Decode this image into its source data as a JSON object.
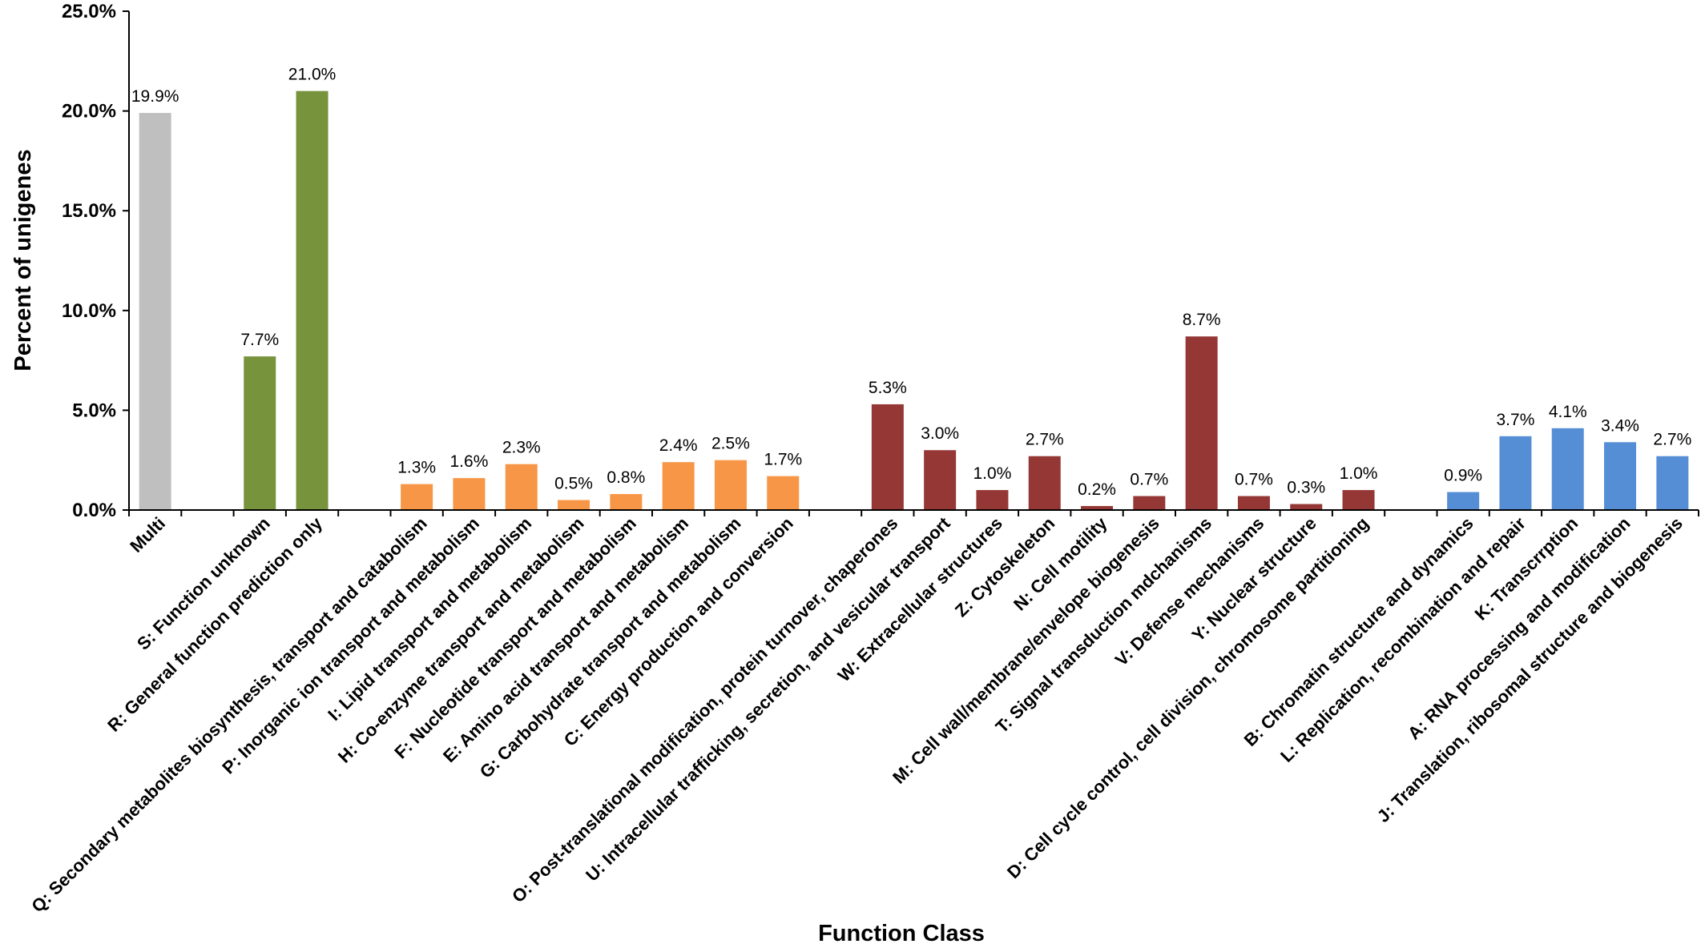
{
  "chart_data": {
    "type": "bar",
    "xlabel": "Function Class",
    "ylabel": "Percent of unigenes",
    "ylim": [
      0,
      25
    ],
    "yticks": [
      "0.0%",
      "5.0%",
      "10.0%",
      "15.0%",
      "20.0%",
      "25.0%"
    ],
    "ytick_values": [
      0,
      5,
      10,
      15,
      20,
      25
    ],
    "grid": false,
    "legend": "none",
    "colors": {
      "multi": "#bfbfbf",
      "green": "#77933c",
      "orange": "#f79646",
      "darkred": "#953735",
      "blue": "#558ed5"
    },
    "bars": [
      {
        "category": "Multi",
        "value": 19.9,
        "label": "19.9%",
        "group": "multi",
        "slot": 0
      },
      {
        "category": "S: Function unknown",
        "value": 7.7,
        "label": "7.7%",
        "group": "green",
        "slot": 2
      },
      {
        "category": "R: General function prediction only",
        "value": 21.0,
        "label": "21.0%",
        "group": "green",
        "slot": 3
      },
      {
        "category": "Q: Secondary metabolites biosynthesis, transport and catabolism",
        "value": 1.3,
        "label": "1.3%",
        "group": "orange",
        "slot": 5
      },
      {
        "category": "P: Inorganic ion transport and metabolism",
        "value": 1.6,
        "label": "1.6%",
        "group": "orange",
        "slot": 6
      },
      {
        "category": "I: Lipid transport and metabolism",
        "value": 2.3,
        "label": "2.3%",
        "group": "orange",
        "slot": 7
      },
      {
        "category": "H: Co-enzyme transport and metabolism",
        "value": 0.5,
        "label": "0.5%",
        "group": "orange",
        "slot": 8
      },
      {
        "category": "F: Nucleotide transport and metabolism",
        "value": 0.8,
        "label": "0.8%",
        "group": "orange",
        "slot": 9
      },
      {
        "category": "E: Amino acid transport and metabolism",
        "value": 2.4,
        "label": "2.4%",
        "group": "orange",
        "slot": 10
      },
      {
        "category": "G: Carbohydrate transport and metabolism",
        "value": 2.5,
        "label": "2.5%",
        "group": "orange",
        "slot": 11
      },
      {
        "category": "C: Energy production and conversion",
        "value": 1.7,
        "label": "1.7%",
        "group": "orange",
        "slot": 12
      },
      {
        "category": "O: Post-translational modification, protein turnover, chaperones",
        "value": 5.3,
        "label": "5.3%",
        "group": "darkred",
        "slot": 14
      },
      {
        "category": "U: Intracellular trafficking, secretion, and vesicular transport",
        "value": 3.0,
        "label": "3.0%",
        "group": "darkred",
        "slot": 15
      },
      {
        "category": "W: Extracellular structures",
        "value": 1.0,
        "label": "1.0%",
        "group": "darkred",
        "slot": 16
      },
      {
        "category": "Z: Cytoskeleton",
        "value": 2.7,
        "label": "2.7%",
        "group": "darkred",
        "slot": 17
      },
      {
        "category": "N: Cell motility",
        "value": 0.2,
        "label": "0.2%",
        "group": "darkred",
        "slot": 18
      },
      {
        "category": "M: Cell wall/membrane/envelope biogenesis",
        "value": 0.7,
        "label": "0.7%",
        "group": "darkred",
        "slot": 19
      },
      {
        "category": "T: Signal transduction mdchanisms",
        "value": 8.7,
        "label": "8.7%",
        "group": "darkred",
        "slot": 20
      },
      {
        "category": "V: Defense mechanisms",
        "value": 0.7,
        "label": "0.7%",
        "group": "darkred",
        "slot": 21
      },
      {
        "category": "Y: Nuclear structure",
        "value": 0.3,
        "label": "0.3%",
        "group": "darkred",
        "slot": 22
      },
      {
        "category": "D: Cell cycle control, cell division, chromosome partitioning",
        "value": 1.0,
        "label": "1.0%",
        "group": "darkred",
        "slot": 23
      },
      {
        "category": "B: Chromatin structure and dynamics",
        "value": 0.9,
        "label": "0.9%",
        "group": "blue",
        "slot": 25
      },
      {
        "category": "L: Replication, recombination and repair",
        "value": 3.7,
        "label": "3.7%",
        "group": "blue",
        "slot": 26
      },
      {
        "category": "K: Transcrrption",
        "value": 4.1,
        "label": "4.1%",
        "group": "blue",
        "slot": 27
      },
      {
        "category": "A: RNA processing and modification",
        "value": 3.4,
        "label": "3.4%",
        "group": "blue",
        "slot": 28
      },
      {
        "category": "J: Translation, ribosomal structure and biogenesis",
        "value": 2.7,
        "label": "2.7%",
        "group": "blue",
        "slot": 29
      }
    ]
  }
}
